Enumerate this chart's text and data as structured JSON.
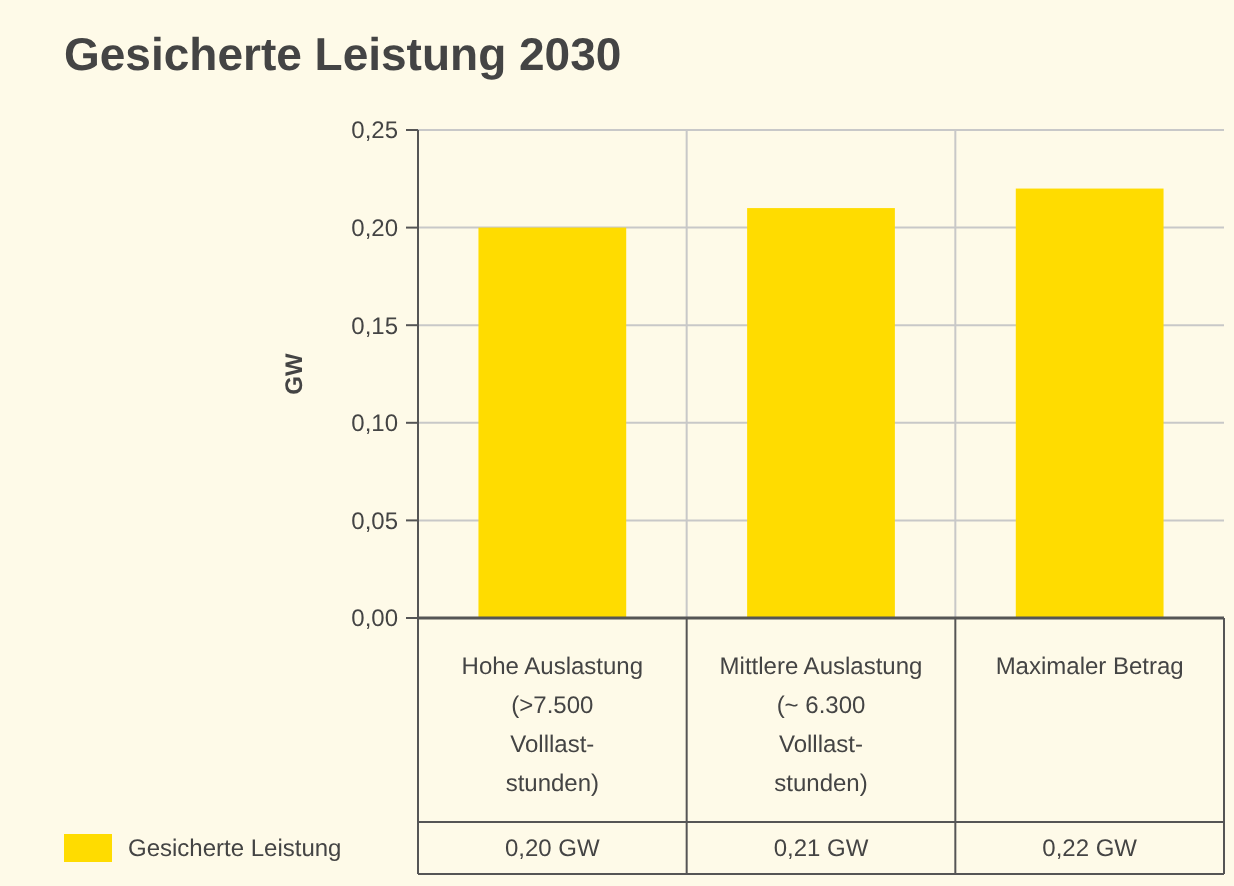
{
  "chart_data": {
    "type": "bar",
    "title": "Gesicherte Leistung 2030",
    "ylabel": "GW",
    "categories": [
      "Hohe Auslastung\n(>7.500\nVolllast-\nstunden)",
      "Mittlere Auslastung\n(~ 6.300\nVolllast-\nstunden)",
      "Maximaler Betrag"
    ],
    "series": [
      {
        "name": "Gesicherte Leistung",
        "color": "#ffdc00",
        "values": [
          0.2,
          0.21,
          0.22
        ],
        "value_labels": [
          "0,20 GW",
          "0,21 GW",
          "0,22 GW"
        ]
      }
    ],
    "ylim": [
      0,
      0.25
    ],
    "yticks": [
      {
        "value": 0,
        "label": "0,00"
      },
      {
        "value": 0.05,
        "label": "0,05"
      },
      {
        "value": 0.1,
        "label": "0,10"
      },
      {
        "value": 0.15,
        "label": "0,15"
      },
      {
        "value": 0.2,
        "label": "0,20"
      },
      {
        "value": 0.25,
        "label": "0,25"
      }
    ],
    "grid": true,
    "legend": "bottom left"
  }
}
